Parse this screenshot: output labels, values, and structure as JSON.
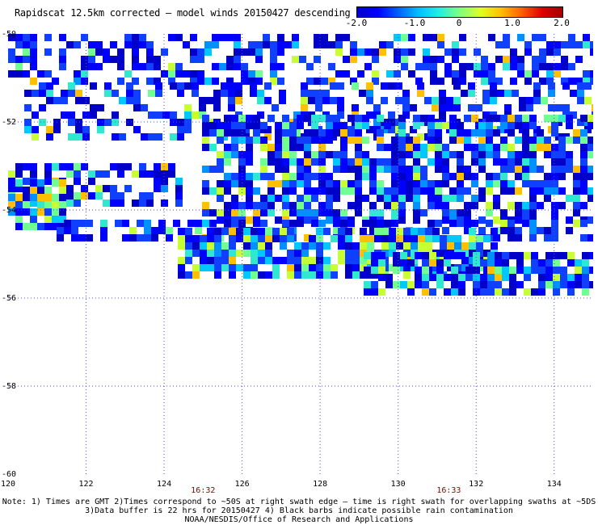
{
  "title": "Rapidscat 12.5km corrected — model winds 20150427 descending",
  "colorbar": {
    "ticks": [
      "-2.0",
      "-1.0",
      "0",
      "1.0",
      "2.0"
    ],
    "colors": [
      "#0000c8",
      "#0000ff",
      "#0060ff",
      "#00c0ff",
      "#20f0e0",
      "#80ff80",
      "#e0ff20",
      "#ffc000",
      "#ff6000",
      "#e00000",
      "#a00000"
    ]
  },
  "map": {
    "lon_range": [
      120,
      135
    ],
    "lat_range": [
      -60,
      -50
    ],
    "lat_labels": [
      "-50",
      "-52",
      "-54",
      "-56",
      "-58",
      "-60"
    ],
    "lon_labels": [
      "120",
      "122",
      "124",
      "126",
      "128",
      "130",
      "132",
      "134"
    ],
    "grid_style": "dotted",
    "times": [
      {
        "label": "16:32",
        "lon": 125
      },
      {
        "label": "16:33",
        "lon": 131.3
      }
    ]
  },
  "notes": [
    "Note: 1) Times are GMT 2)Times correspond to ~50S at right swath edge — time is right swath for overlapping swaths at ~5DS",
    "3)Data buffer is 22 hrs for 20150427 4) Black barbs indicate possible rain contamination",
    "NOAA/NESDIS/Office of Research and Applications"
  ]
}
